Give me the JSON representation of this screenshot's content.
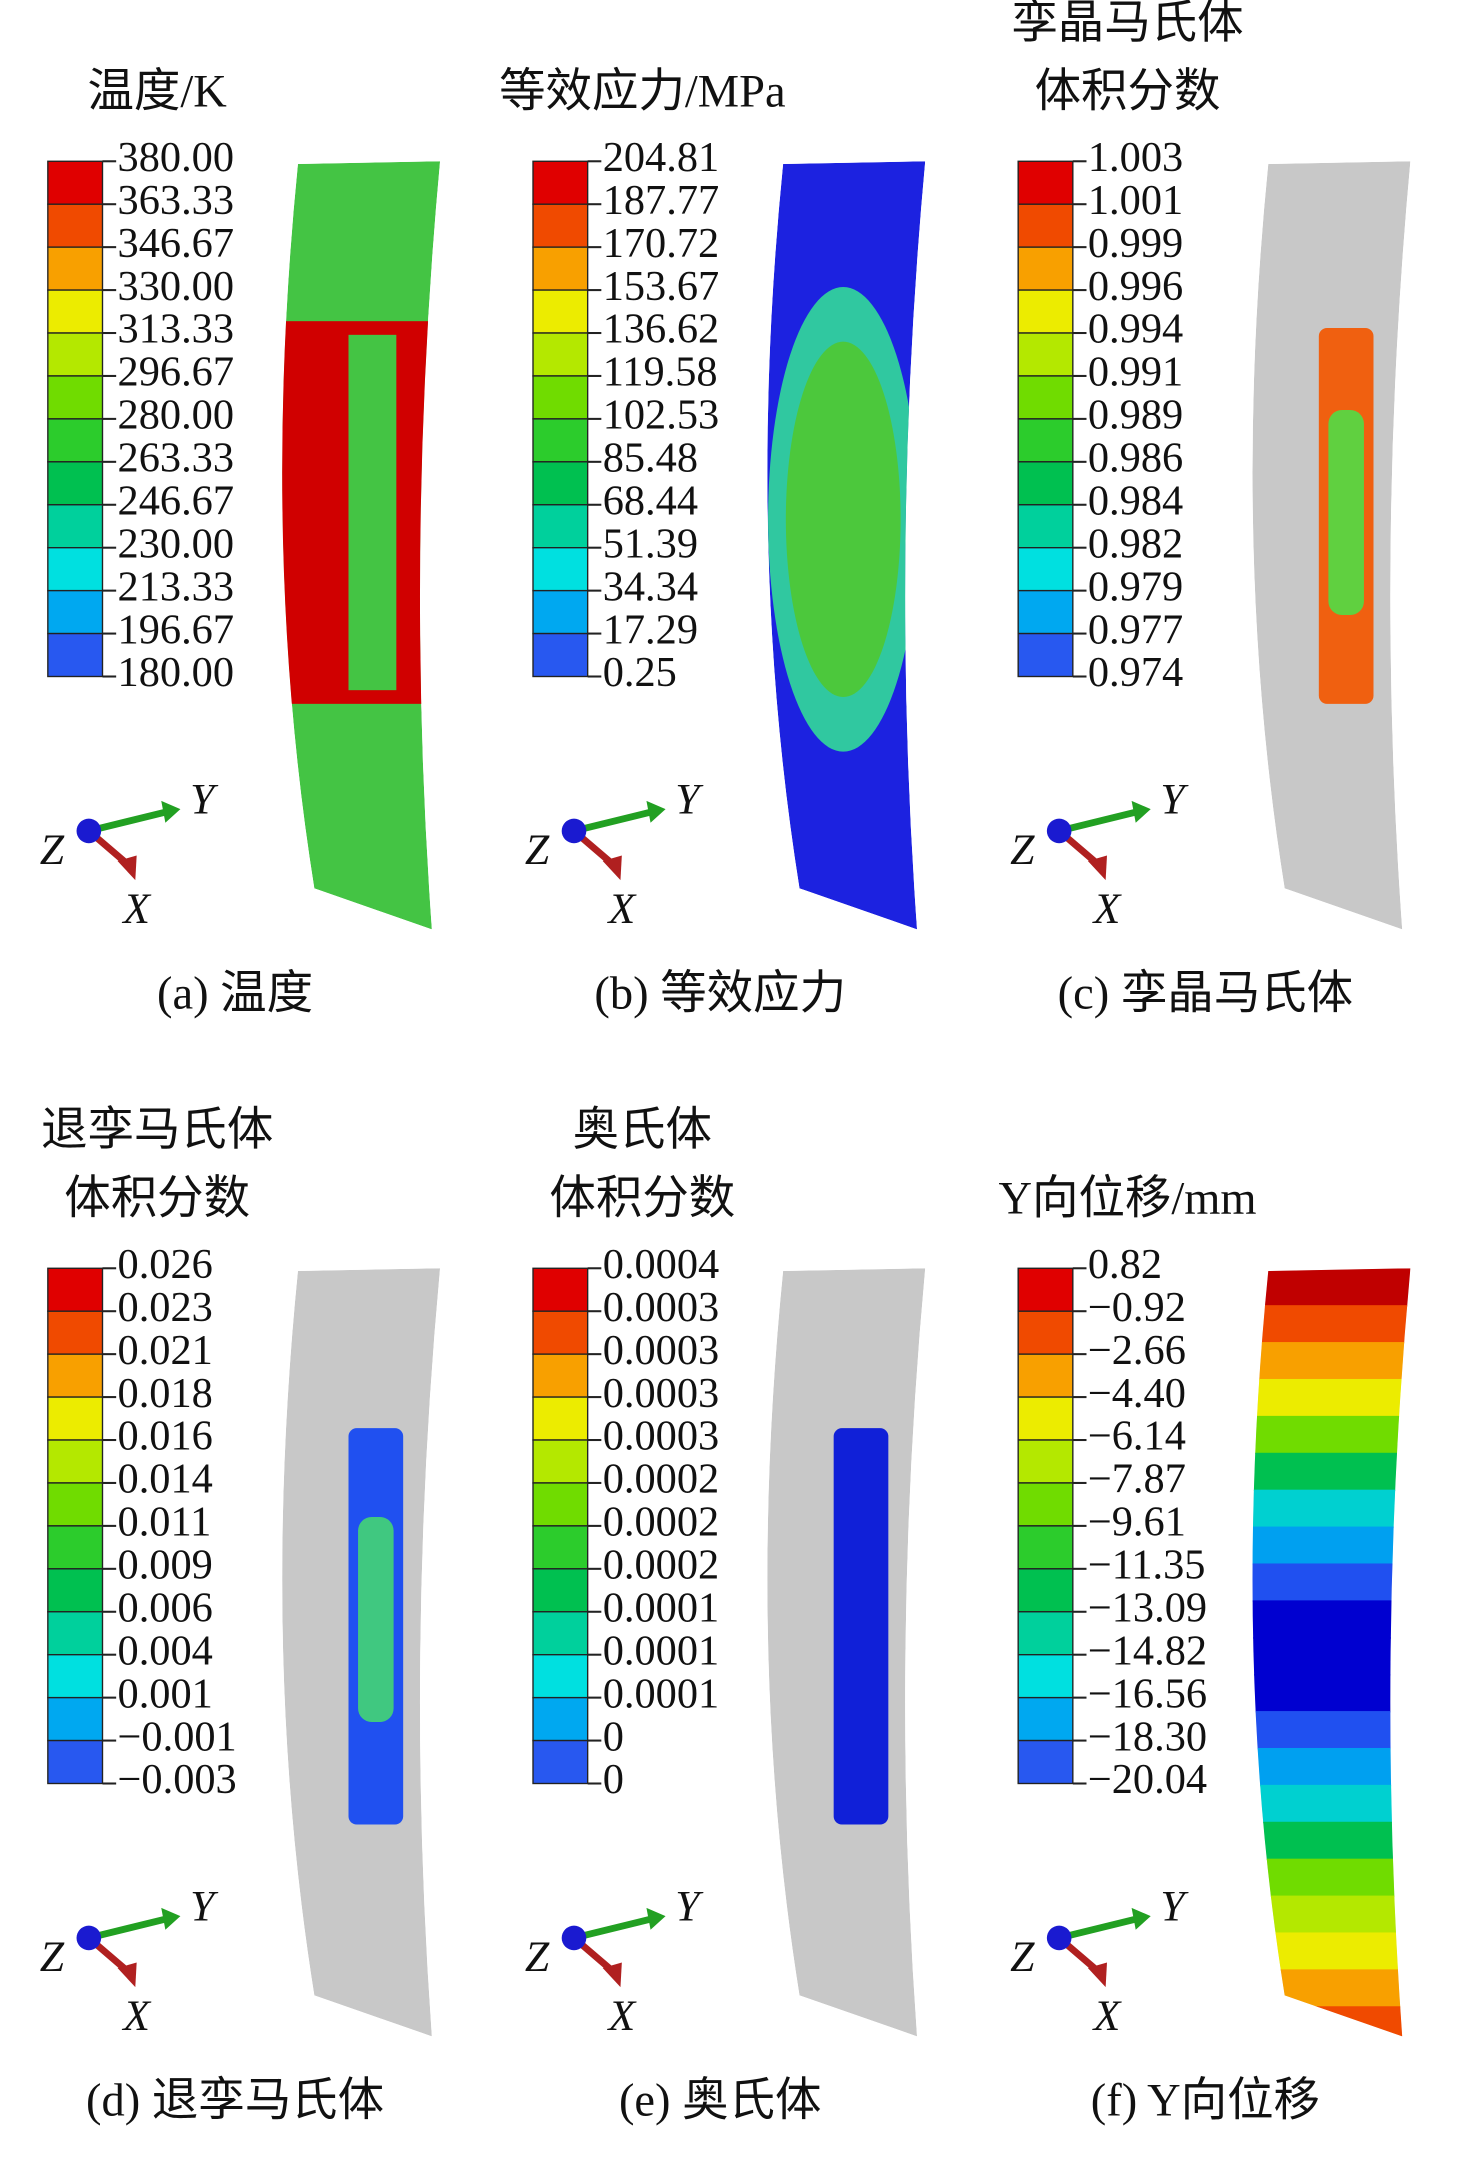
{
  "panels": [
    {
      "title": [
        "温度/K"
      ],
      "legend": [
        "380.00",
        "363.33",
        "346.67",
        "330.00",
        "313.33",
        "296.67",
        "280.00",
        "263.33",
        "246.67",
        "230.00",
        "213.33",
        "196.67",
        "180.00"
      ],
      "axes": [
        "Y",
        "Z",
        "X"
      ],
      "caption": "(a) 温度"
    },
    {
      "title": [
        "等效应力/MPa"
      ],
      "legend": [
        "204.81",
        "187.77",
        "170.72",
        "153.67",
        "136.62",
        "119.58",
        "102.53",
        "85.48",
        "68.44",
        "51.39",
        "34.34",
        "17.29",
        "0.25"
      ],
      "axes": [
        "Y",
        "Z",
        "X"
      ],
      "caption": "(b) 等效应力"
    },
    {
      "title": [
        "孪晶马氏体",
        "体积分数"
      ],
      "legend": [
        "1.003",
        "1.001",
        "0.999",
        "0.996",
        "0.994",
        "0.991",
        "0.989",
        "0.986",
        "0.984",
        "0.982",
        "0.979",
        "0.977",
        "0.974"
      ],
      "axes": [
        "Y",
        "Z",
        "X"
      ],
      "caption": "(c) 孪晶马氏体"
    },
    {
      "title": [
        "退孪马氏体",
        "体积分数"
      ],
      "legend": [
        "0.026",
        "0.023",
        "0.021",
        "0.018",
        "0.016",
        "0.014",
        "0.011",
        "0.009",
        "0.006",
        "0.004",
        "0.001",
        "−0.001",
        "−0.003"
      ],
      "axes": [
        "Y",
        "Z",
        "X"
      ],
      "caption": "(d) 退孪马氏体"
    },
    {
      "title": [
        "奥氏体",
        "体积分数"
      ],
      "legend": [
        "0.0004",
        "0.0003",
        "0.0003",
        "0.0003",
        "0.0003",
        "0.0002",
        "0.0002",
        "0.0002",
        "0.0001",
        "0.0001",
        "0.0001",
        "0",
        "0"
      ],
      "axes": [
        "Y",
        "Z",
        "X"
      ],
      "caption": "(e) 奥氏体"
    },
    {
      "title": [
        "Y向位移/mm"
      ],
      "legend": [
        "0.82",
        "−0.92",
        "−2.66",
        "−4.40",
        "−6.14",
        "−7.87",
        "−9.61",
        "−11.35",
        "−13.09",
        "−14.82",
        "−16.56",
        "−18.30",
        "−20.04"
      ],
      "axes": [
        "Y",
        "Z",
        "X"
      ],
      "caption": "(f) Y向位移"
    }
  ]
}
